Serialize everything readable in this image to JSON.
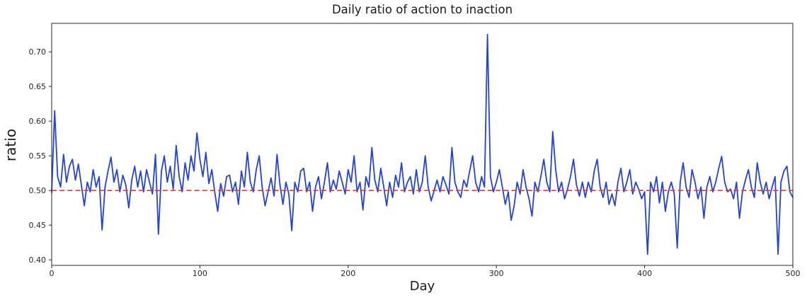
{
  "chart_data": {
    "type": "line",
    "title": "Daily ratio of action to inaction",
    "xlabel": "Day",
    "ylabel": "ratio",
    "xlim": [
      0,
      500
    ],
    "ylim": [
      0.392,
      0.741
    ],
    "grid": false,
    "legend": null,
    "background_color": "#ffffff",
    "spine_color": "#262626",
    "tick_label_color": "#262626",
    "x_ticks": [
      0,
      100,
      200,
      300,
      400,
      500
    ],
    "x_tick_labels": [
      "0",
      "100",
      "200",
      "300",
      "400",
      "500"
    ],
    "y_ticks": [
      0.4,
      0.45,
      0.5,
      0.55,
      0.6,
      0.65,
      0.7
    ],
    "y_tick_labels": [
      "0.40",
      "0.45",
      "0.50",
      "0.55",
      "0.60",
      "0.65",
      "0.70"
    ],
    "series": [
      {
        "name": "daily-ratio",
        "color": "#2142e0",
        "style": "solid",
        "line_width": 1.8,
        "x_start": 0,
        "x_step": 2,
        "values": [
          0.497,
          0.615,
          0.52,
          0.505,
          0.552,
          0.512,
          0.535,
          0.545,
          0.515,
          0.538,
          0.508,
          0.478,
          0.512,
          0.498,
          0.53,
          0.505,
          0.52,
          0.443,
          0.505,
          0.528,
          0.548,
          0.512,
          0.53,
          0.498,
          0.522,
          0.508,
          0.475,
          0.515,
          0.535,
          0.505,
          0.528,
          0.498,
          0.53,
          0.512,
          0.495,
          0.552,
          0.437,
          0.528,
          0.55,
          0.512,
          0.535,
          0.502,
          0.565,
          0.52,
          0.498,
          0.54,
          0.515,
          0.55,
          0.528,
          0.583,
          0.545,
          0.52,
          0.555,
          0.51,
          0.53,
          0.498,
          0.47,
          0.51,
          0.492,
          0.52,
          0.522,
          0.498,
          0.512,
          0.48,
          0.528,
          0.505,
          0.555,
          0.512,
          0.498,
          0.53,
          0.55,
          0.505,
          0.478,
          0.498,
          0.518,
          0.492,
          0.552,
          0.508,
          0.48,
          0.512,
          0.495,
          0.442,
          0.512,
          0.498,
          0.528,
          0.532,
          0.498,
          0.512,
          0.47,
          0.505,
          0.52,
          0.488,
          0.512,
          0.54,
          0.498,
          0.515,
          0.502,
          0.528,
          0.512,
          0.495,
          0.53,
          0.512,
          0.55,
          0.498,
          0.512,
          0.472,
          0.52,
          0.505,
          0.562,
          0.515,
          0.498,
          0.532,
          0.505,
          0.478,
          0.512,
          0.49,
          0.522,
          0.505,
          0.54,
          0.498,
          0.512,
          0.52,
          0.495,
          0.53,
          0.498,
          0.512,
          0.55,
          0.505,
          0.485,
          0.5,
          0.515,
          0.498,
          0.52,
          0.508,
          0.495,
          0.562,
          0.512,
          0.498,
          0.49,
          0.515,
          0.505,
          0.528,
          0.55,
          0.512,
          0.498,
          0.52,
          0.505,
          0.725,
          0.52,
          0.498,
          0.512,
          0.53,
          0.505,
          0.48,
          0.498,
          0.457,
          0.478,
          0.512,
          0.495,
          0.53,
          0.505,
          0.488,
          0.463,
          0.512,
          0.498,
          0.52,
          0.545,
          0.512,
          0.498,
          0.585,
          0.53,
          0.498,
          0.512,
          0.488,
          0.502,
          0.52,
          0.545,
          0.508,
          0.492,
          0.512,
          0.49,
          0.512,
          0.498,
          0.528,
          0.545,
          0.505,
          0.49,
          0.512,
          0.48,
          0.495,
          0.478,
          0.512,
          0.532,
          0.498,
          0.512,
          0.53,
          0.495,
          0.512,
          0.502,
          0.488,
          0.498,
          0.408,
          0.512,
          0.498,
          0.52,
          0.482,
          0.512,
          0.47,
          0.498,
          0.512,
          0.495,
          0.417,
          0.512,
          0.54,
          0.505,
          0.49,
          0.53,
          0.512,
          0.488,
          0.505,
          0.46,
          0.505,
          0.52,
          0.498,
          0.512,
          0.532,
          0.549,
          0.512,
          0.498,
          0.502,
          0.488,
          0.512,
          0.46,
          0.498,
          0.515,
          0.53,
          0.505,
          0.49,
          0.54,
          0.512,
          0.495,
          0.512,
          0.488,
          0.505,
          0.52,
          0.408,
          0.512,
          0.528,
          0.535,
          0.498,
          0.49
        ]
      },
      {
        "name": "mean-line",
        "color": "#ee3333",
        "style": "dashed",
        "line_width": 1.6,
        "y": 0.5
      }
    ]
  }
}
